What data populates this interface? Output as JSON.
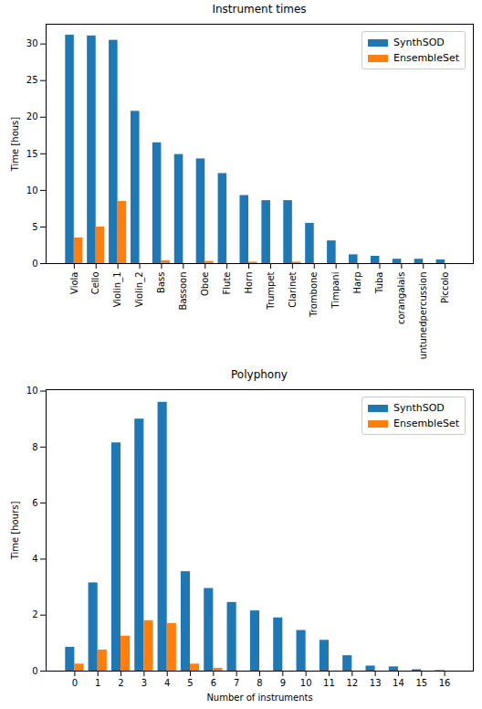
{
  "chart_data": [
    {
      "type": "bar",
      "title": "Instrument times",
      "y_label": "Time [hous]",
      "categories": [
        "Viola",
        "Cello",
        "Violin_1",
        "Violin_2",
        "Bass",
        "Bassoon",
        "Oboe",
        "Flute",
        "Horn",
        "Trumpet",
        "Clarinet",
        "Trombone",
        "Timpani",
        "Harp",
        "Tuba",
        "corangalais",
        "untunedpercussion",
        "Piccolo"
      ],
      "series": [
        {
          "name": "SynthSOD",
          "color": "#1f77b4",
          "values": [
            31.2,
            31.1,
            30.5,
            20.8,
            16.5,
            14.9,
            14.3,
            12.3,
            9.3,
            8.6,
            8.6,
            5.5,
            3.1,
            1.2,
            1.0,
            0.6,
            0.6,
            0.5
          ]
        },
        {
          "name": "EnsembleSet",
          "color": "#ff7f0e",
          "values": [
            3.5,
            5.0,
            8.5,
            0,
            0.4,
            0,
            0.3,
            0,
            0.2,
            0,
            0.2,
            0,
            0,
            0,
            0,
            0,
            0,
            0
          ]
        }
      ],
      "ylim": [
        0,
        32.7
      ],
      "yticks": [
        0,
        5,
        10,
        15,
        20,
        25,
        30
      ],
      "grid": false,
      "legend": "upper right"
    },
    {
      "type": "bar",
      "title": "Polyphony",
      "x_label": "Number of instruments",
      "y_label": "Time [hours]",
      "categories": [
        "0",
        "1",
        "2",
        "3",
        "4",
        "5",
        "6",
        "7",
        "8",
        "9",
        "10",
        "11",
        "12",
        "13",
        "14",
        "15",
        "16"
      ],
      "series": [
        {
          "name": "SynthSOD",
          "color": "#1f77b4",
          "values": [
            0.85,
            3.15,
            8.15,
            9.0,
            9.6,
            3.55,
            2.95,
            2.45,
            2.15,
            1.9,
            1.45,
            1.1,
            0.55,
            0.18,
            0.15,
            0.05,
            0.02
          ]
        },
        {
          "name": "EnsembleSet",
          "color": "#ff7f0e",
          "values": [
            0.25,
            0.75,
            1.25,
            1.8,
            1.7,
            0.25,
            0.1,
            0,
            0,
            0,
            0,
            0,
            0,
            0,
            0,
            0,
            0
          ]
        }
      ],
      "ylim": [
        0,
        10.05
      ],
      "yticks": [
        0,
        2,
        4,
        6,
        8,
        10
      ],
      "grid": false,
      "legend": "upper right"
    }
  ]
}
